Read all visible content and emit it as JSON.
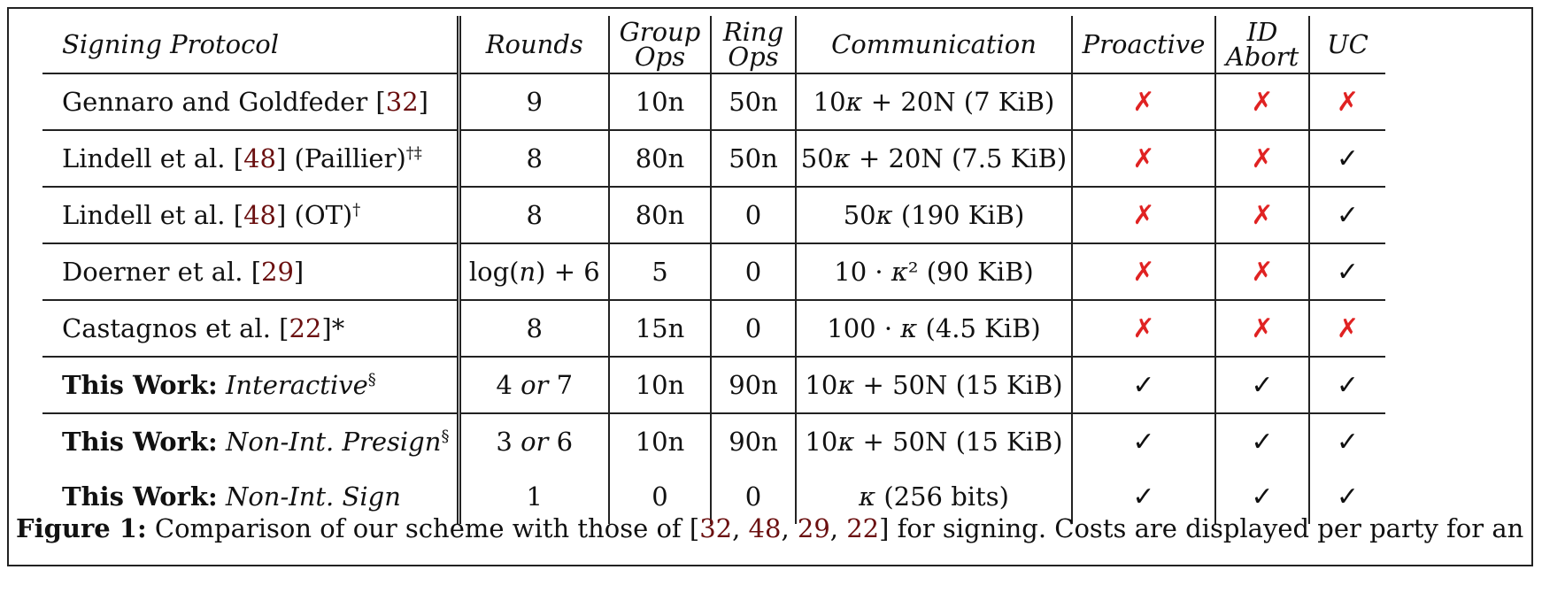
{
  "headers": {
    "protocol": "Signing Protocol",
    "rounds": "Rounds",
    "group_ops_1": "Group",
    "group_ops_2": "Ops",
    "ring_ops_1": "Ring",
    "ring_ops_2": "Ops",
    "communication": "Communication",
    "proactive": "Proactive",
    "id_abort_1": "ID",
    "id_abort_2": "Abort",
    "uc": "UC"
  },
  "rows": [
    {
      "name_pre": "Gennaro and Goldfeder [",
      "cite": "32",
      "name_post": "]",
      "sup": "",
      "rounds": "9",
      "group": "10n",
      "ring": "50n",
      "comm": "10κ + 20N (7 KiB)",
      "proactive": "✗",
      "id_abort": "✗",
      "uc": "✗"
    },
    {
      "name_pre": "Lindell et al. [",
      "cite": "48",
      "name_post": "] (Paillier)",
      "sup": "†‡",
      "rounds": "8",
      "group": "80n",
      "ring": "50n",
      "comm": "50κ + 20N (7.5 KiB)",
      "proactive": "✗",
      "id_abort": "✗",
      "uc": "✓"
    },
    {
      "name_pre": "Lindell et al. [",
      "cite": "48",
      "name_post": "] (OT)",
      "sup": "†",
      "rounds": "8",
      "group": "80n",
      "ring": "0",
      "comm": "50κ (190 KiB)",
      "proactive": "✗",
      "id_abort": "✗",
      "uc": "✓"
    },
    {
      "name_pre": "Doerner et al. [",
      "cite": "29",
      "name_post": "]",
      "sup": "",
      "rounds": "log(n) + 6",
      "group": "5",
      "ring": "0",
      "comm": "10 · κ² (90 KiB)",
      "proactive": "✗",
      "id_abort": "✗",
      "uc": "✓"
    },
    {
      "name_pre": "Castagnos et al. [",
      "cite": "22",
      "name_post": "]*",
      "sup": "",
      "rounds": "8",
      "group": "15n",
      "ring": "0",
      "comm": "100 · κ (4.5 KiB)",
      "proactive": "✗",
      "id_abort": "✗",
      "uc": "✗"
    }
  ],
  "work_rows": [
    {
      "bold": "This Work:",
      "ital": "Interactive",
      "sup": "§",
      "rounds": "4 or 7",
      "group": "10n",
      "ring": "90n",
      "comm": "10κ + 50N (15 KiB)",
      "proactive": "✓",
      "id_abort": "✓",
      "uc": "✓"
    },
    {
      "bold": "This Work:",
      "ital": "Non-Int. Presign",
      "sup": "§",
      "rounds": "3 or 6",
      "group": "10n",
      "ring": "90n",
      "comm": "10κ + 50N (15 KiB)",
      "proactive": "✓",
      "id_abort": "✓",
      "uc": "✓"
    },
    {
      "bold": "This Work:",
      "ital": "Non-Int. Sign",
      "sup": "",
      "rounds": "1",
      "group": "0",
      "ring": "0",
      "comm": "κ (256 bits)",
      "proactive": "✓",
      "id_abort": "✓",
      "uc": "✓"
    }
  ],
  "caption": {
    "label": "Figure 1:",
    "text_pre": "Comparison of our scheme with those of [",
    "cites": [
      "32",
      "48",
      "29",
      "22"
    ],
    "text_post": "] for signing. Costs are displayed per party for an"
  },
  "colors": {
    "cross": "#e02222",
    "citation": "#6b1010",
    "check": "#111111"
  }
}
